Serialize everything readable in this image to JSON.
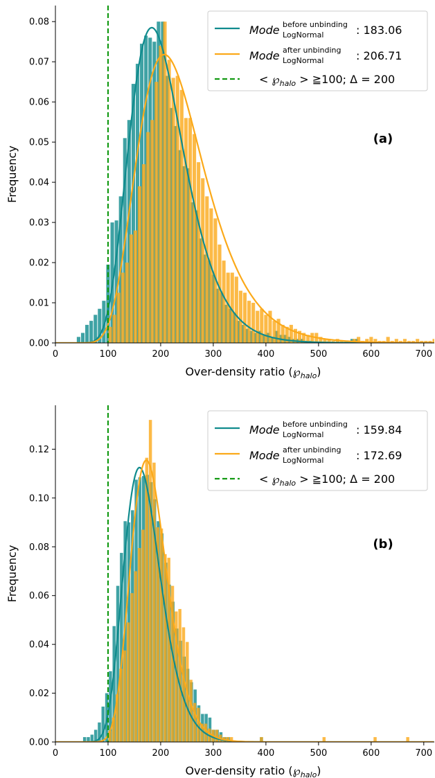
{
  "chart_data": [
    {
      "type": "bar",
      "panel_label": "(a)",
      "xlabel": "Over-density ratio (℘",
      "xlabel_sub": "halo",
      "xlabel_close": ")",
      "ylabel": "Frequency",
      "xlim": [
        0,
        720
      ],
      "ylim": [
        0,
        0.084
      ],
      "xticks": [
        0,
        100,
        200,
        300,
        400,
        500,
        600,
        700
      ],
      "yticks": [
        0.0,
        0.01,
        0.02,
        0.03,
        0.04,
        0.05,
        0.06,
        0.07,
        0.08
      ],
      "ytick_labels": [
        "0.00",
        "0.01",
        "0.02",
        "0.03",
        "0.04",
        "0.05",
        "0.06",
        "0.07",
        "0.08"
      ],
      "bin_width": 8,
      "legend": {
        "before_main": "Mode",
        "before_sup": "before unbinding",
        "before_sub": "LogNormal",
        "before_value": ": 183.06",
        "after_main": "Mode",
        "after_sup": "after unbinding",
        "after_sub": "LogNormal",
        "after_value": ": 206.71",
        "threshold_text": "< ℘",
        "threshold_sub": "halo",
        "threshold_tail": " > ≧100; Δ = 200",
        "placement": "top-right"
      },
      "colors": {
        "before": "#0f8b8d",
        "after": "#fba919",
        "threshold": "#129912"
      },
      "threshold_x": 100,
      "lognormal_before": {
        "mode": 183.06,
        "peak": 0.0785,
        "sigma": 0.285
      },
      "lognormal_after": {
        "mode": 206.71,
        "peak": 0.0718,
        "sigma": 0.31
      },
      "series": [
        {
          "name": "before unbinding",
          "x_start": [
            40,
            48,
            56,
            64,
            72,
            80,
            88,
            96,
            104,
            112,
            120,
            128,
            136,
            144,
            152,
            160,
            168,
            176,
            184,
            192,
            200,
            208,
            216,
            224,
            232,
            240,
            248,
            256,
            264,
            272,
            280,
            288,
            296,
            304,
            312,
            320,
            328,
            336,
            344,
            352,
            360,
            368,
            376,
            384,
            392,
            400,
            408,
            416,
            424,
            432,
            440,
            448,
            456,
            464,
            472,
            480,
            560,
            568
          ],
          "values": [
            0.0015,
            0.0025,
            0.0045,
            0.0055,
            0.007,
            0.0085,
            0.0105,
            0.0195,
            0.03,
            0.0305,
            0.0365,
            0.051,
            0.0555,
            0.0645,
            0.0695,
            0.0745,
            0.0765,
            0.076,
            0.075,
            0.08,
            0.08,
            0.0665,
            0.0585,
            0.054,
            0.048,
            0.044,
            0.0435,
            0.035,
            0.033,
            0.026,
            0.022,
            0.0205,
            0.017,
            0.0135,
            0.0125,
            0.0095,
            0.0085,
            0.0075,
            0.0055,
            0.0045,
            0.0035,
            0.003,
            0.0025,
            0.003,
            0.002,
            0.0025,
            0.0015,
            0.003,
            0.002,
            0.002,
            0.0015,
            0.001,
            0.001,
            0.001,
            0.0005,
            0.0005,
            0.001,
            0.001
          ]
        },
        {
          "name": "after unbinding",
          "x_start": [
            100,
            108,
            116,
            124,
            132,
            140,
            148,
            156,
            164,
            172,
            180,
            188,
            196,
            204,
            212,
            220,
            228,
            236,
            244,
            252,
            260,
            268,
            276,
            284,
            292,
            300,
            308,
            316,
            324,
            332,
            340,
            348,
            356,
            364,
            372,
            380,
            388,
            396,
            404,
            412,
            420,
            428,
            436,
            444,
            452,
            460,
            468,
            476,
            484,
            492,
            500,
            508,
            516,
            524,
            532,
            540,
            548,
            556,
            564,
            572,
            580,
            588,
            596,
            604,
            612,
            620,
            628,
            636,
            644,
            652,
            660,
            668,
            676,
            684,
            692,
            700,
            708,
            716
          ],
          "values": [
            0.004,
            0.007,
            0.0125,
            0.0175,
            0.02,
            0.027,
            0.028,
            0.039,
            0.0445,
            0.0525,
            0.0555,
            0.065,
            0.074,
            0.08,
            0.0705,
            0.066,
            0.0665,
            0.063,
            0.056,
            0.056,
            0.052,
            0.045,
            0.041,
            0.0365,
            0.0335,
            0.031,
            0.0245,
            0.0205,
            0.0175,
            0.0175,
            0.0165,
            0.013,
            0.0125,
            0.0105,
            0.01,
            0.008,
            0.0085,
            0.007,
            0.008,
            0.0055,
            0.006,
            0.0045,
            0.004,
            0.0045,
            0.0035,
            0.003,
            0.0025,
            0.002,
            0.0025,
            0.0025,
            0.0015,
            0.001,
            0.001,
            0.0005,
            0.001,
            0.0005,
            0.0005,
            0.0005,
            0.001,
            0.0015,
            0.0005,
            0.001,
            0.0015,
            0.001,
            0.0005,
            0.0005,
            0.0015,
            0.0005,
            0.001,
            0.0005,
            0.001,
            0.0005,
            0.0005,
            0.001,
            0.0005,
            0.0005,
            0.0005,
            0.001
          ]
        }
      ]
    },
    {
      "type": "bar",
      "panel_label": "(b)",
      "xlabel": "Over-density ratio (℘",
      "xlabel_sub": "halo",
      "xlabel_close": ")",
      "ylabel": "Frequency",
      "xlim": [
        0,
        720
      ],
      "ylim": [
        0,
        0.138
      ],
      "xticks": [
        0,
        100,
        200,
        300,
        400,
        500,
        600,
        700
      ],
      "yticks": [
        0.0,
        0.02,
        0.04,
        0.06,
        0.08,
        0.1,
        0.12
      ],
      "ytick_labels": [
        "0.00",
        "0.02",
        "0.04",
        "0.06",
        "0.08",
        "0.10",
        "0.12"
      ],
      "bin_width": 7,
      "legend": {
        "before_main": "Mode",
        "before_sup": "before unbinding",
        "before_sub": "LogNormal",
        "before_value": ": 159.84",
        "after_main": "Mode",
        "after_sup": "after unbinding",
        "after_sub": "LogNormal",
        "after_value": ": 172.69",
        "threshold_text": "< ℘",
        "threshold_sub": "halo",
        "threshold_tail": " > ≧100; Δ = 200",
        "placement": "top-right"
      },
      "colors": {
        "before": "#0f8b8d",
        "after": "#fba919",
        "threshold": "#129912"
      },
      "threshold_x": 100,
      "lognormal_before": {
        "mode": 159.84,
        "peak": 0.1125,
        "sigma": 0.22
      },
      "lognormal_after": {
        "mode": 172.69,
        "peak": 0.1155,
        "sigma": 0.2
      },
      "series": [
        {
          "name": "before unbinding",
          "x_start": [
            52,
            59,
            66,
            73,
            80,
            87,
            94,
            101,
            108,
            115,
            122,
            129,
            136,
            143,
            150,
            157,
            164,
            171,
            178,
            185,
            192,
            199,
            206,
            213,
            220,
            227,
            234,
            241,
            248,
            255,
            262,
            269,
            276,
            283,
            290,
            297,
            304,
            311,
            318,
            325,
            388
          ],
          "values": [
            0.002,
            0.002,
            0.003,
            0.005,
            0.008,
            0.0145,
            0.02,
            0.029,
            0.0475,
            0.064,
            0.0775,
            0.0905,
            0.09,
            0.095,
            0.1075,
            0.1085,
            0.109,
            0.1095,
            0.1065,
            0.0995,
            0.0905,
            0.0855,
            0.0735,
            0.0645,
            0.0575,
            0.0465,
            0.0415,
            0.035,
            0.03,
            0.0245,
            0.0215,
            0.015,
            0.0115,
            0.0115,
            0.01,
            0.005,
            0.005,
            0.004,
            0.002,
            0.002,
            0.002
          ]
        },
        {
          "name": "after unbinding",
          "x_start": [
            100,
            107,
            114,
            121,
            128,
            135,
            142,
            149,
            156,
            163,
            170,
            177,
            184,
            191,
            198,
            205,
            212,
            219,
            226,
            233,
            240,
            247,
            254,
            261,
            268,
            275,
            282,
            289,
            296,
            303,
            310,
            317,
            324,
            331,
            388,
            507,
            604,
            666
          ],
          "values": [
            0.0045,
            0.01,
            0.0195,
            0.03,
            0.0375,
            0.049,
            0.061,
            0.07,
            0.0795,
            0.087,
            0.1165,
            0.132,
            0.1145,
            0.088,
            0.0875,
            0.077,
            0.0755,
            0.064,
            0.0535,
            0.0545,
            0.047,
            0.041,
            0.0255,
            0.016,
            0.014,
            0.0075,
            0.0075,
            0.0055,
            0.005,
            0.005,
            0.003,
            0.002,
            0.002,
            0.002,
            0.002,
            0.002,
            0.002,
            0.002
          ]
        }
      ]
    }
  ]
}
